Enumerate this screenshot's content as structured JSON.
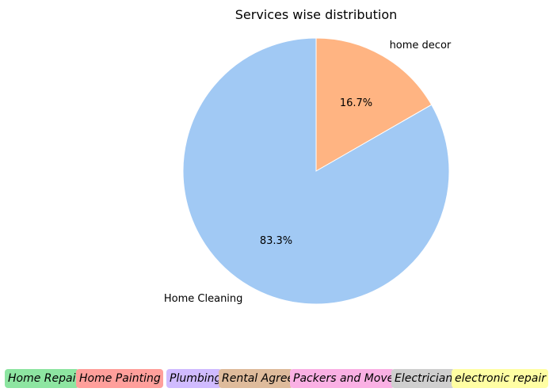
{
  "chart_data": {
    "type": "pie",
    "title": "Services wise distribution",
    "slices": [
      {
        "label": "home decor",
        "value": 16.7,
        "pct_label": "16.7%",
        "color": "#ffb482"
      },
      {
        "label": "Home Cleaning",
        "value": 83.3,
        "pct_label": "83.3%",
        "color": "#a1c9f4"
      }
    ],
    "start_angle_deg": 90,
    "direction": "clockwise"
  },
  "legend": {
    "items": [
      {
        "label": "Home Repair",
        "color": "#8de5a1"
      },
      {
        "label": "Home Painting",
        "color": "#ff9f9b"
      },
      {
        "label": "Plumbing",
        "color": "#d0bbff"
      },
      {
        "label": "Rental Agreement",
        "color": "#debb9b"
      },
      {
        "label": "Packers and Movers",
        "color": "#fab0e4"
      },
      {
        "label": "Electrician",
        "color": "#cfcfcf"
      },
      {
        "label": "electronic repair",
        "color": "#fffea3"
      }
    ]
  }
}
